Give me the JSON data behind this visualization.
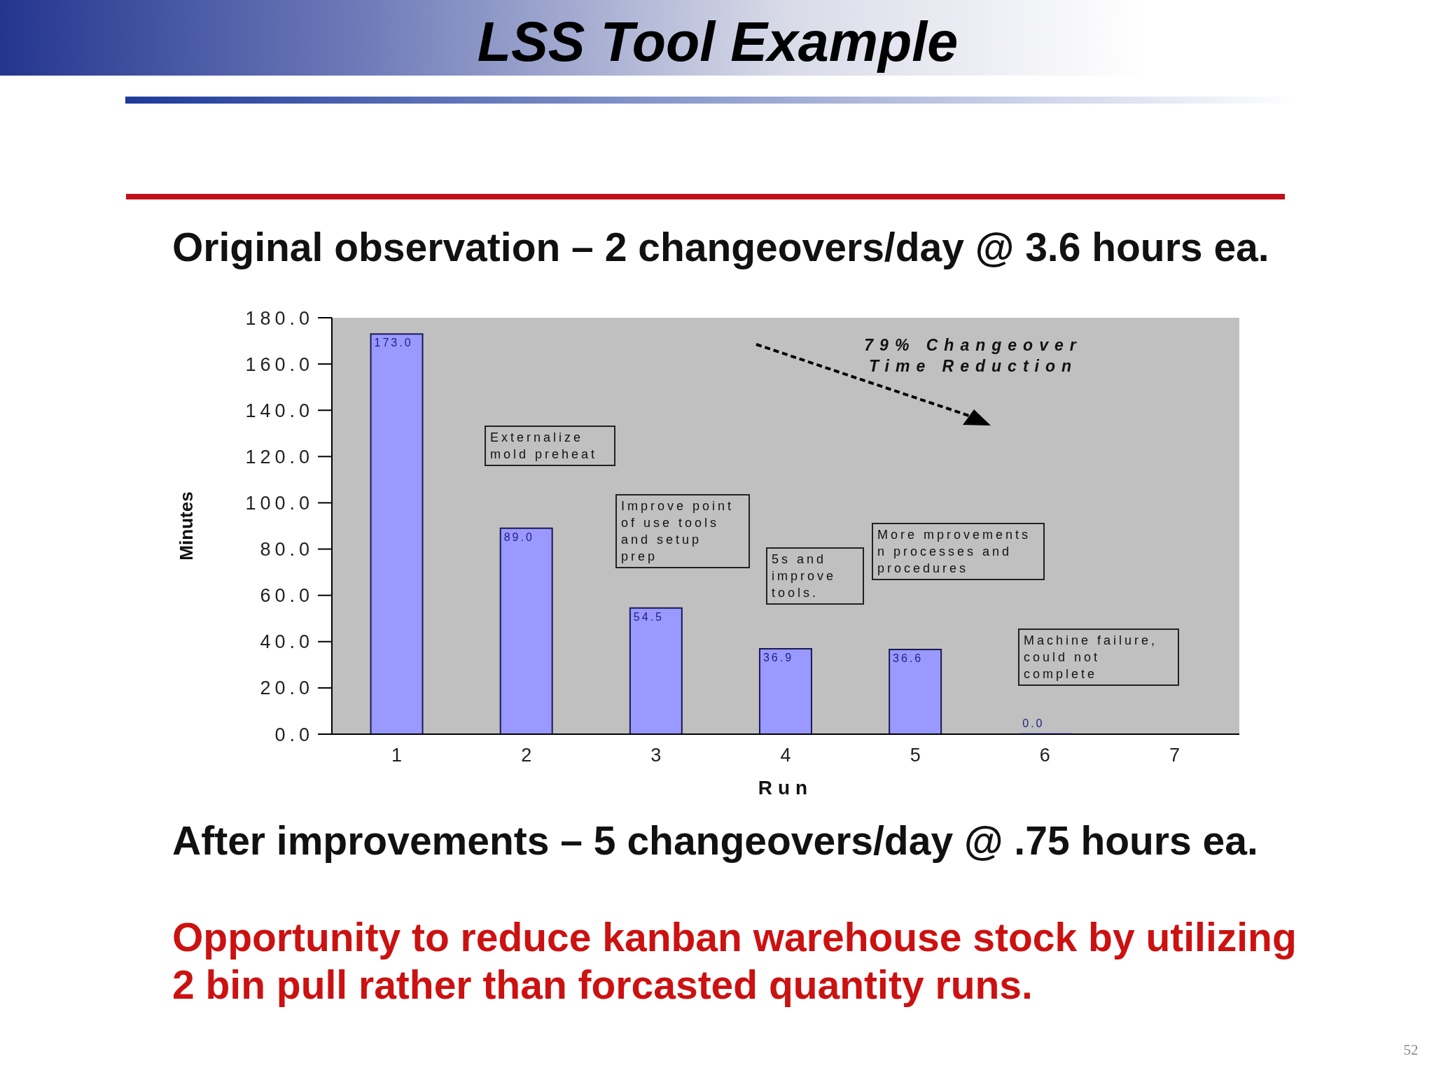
{
  "chart_data": {
    "type": "bar",
    "title": "LSS Tool Example",
    "subtitle": "Original observation – 2 changeovers/day @ 3.6 hours ea.",
    "xlabel": "Run",
    "ylabel": "Minutes",
    "categories": [
      "1",
      "2",
      "3",
      "4",
      "5",
      "6",
      "7"
    ],
    "values": [
      173.0,
      89.0,
      54.5,
      36.9,
      36.6,
      0.0,
      null
    ],
    "color": "#9999ff",
    "value_labels": [
      "173.0",
      "89.0",
      "54.5",
      "36.9",
      "36.6",
      "0.0",
      null
    ],
    "ylim": [
      0,
      180
    ],
    "yticks": [
      {
        "value": 0,
        "label": "0.0"
      },
      {
        "value": 20,
        "label": "20.0"
      },
      {
        "value": 40,
        "label": "40.0"
      },
      {
        "value": 60,
        "label": "60.0"
      },
      {
        "value": 80,
        "label": "80.0"
      },
      {
        "value": 100,
        "label": "100.0"
      },
      {
        "value": 120,
        "label": "120.0"
      },
      {
        "value": 140,
        "label": "140.0"
      },
      {
        "value": 160,
        "label": "160.0"
      },
      {
        "value": 180,
        "label": "180.0"
      }
    ],
    "annotations": [
      "79% Changeover Time Reduction",
      "Externalize mold preheat",
      "Improve point of use tools and setup prep",
      "5s and improve tools.",
      "More mprovements n processes and procedures",
      "Machine failure, could not complete",
      "After improvements – 5 changeovers/day @ .75 hours ea.",
      "Opportunity to reduce kanban warehouse stock by utilizing 2 bin pull rather than forcasted quantity runs.",
      "52"
    ]
  }
}
